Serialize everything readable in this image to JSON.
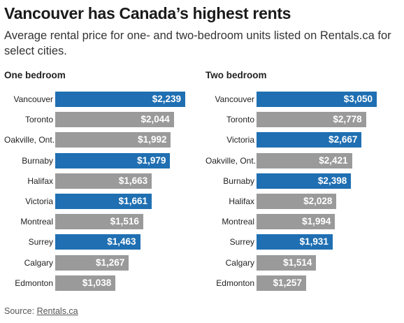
{
  "title": "Vancouver has Canada’s highest rents",
  "subtitle": "Average rental price for one- and two-bedroom units listed on Rentals.ca for select cities.",
  "source": {
    "label": "Source: ",
    "link_text": "Rentals.ca"
  },
  "colors": {
    "highlight": "#1f6fb2",
    "default": "#9a9a9a"
  },
  "chart_data": [
    {
      "type": "bar",
      "orientation": "horizontal",
      "title": "One bedroom",
      "categories": [
        "Vancouver",
        "Toronto",
        "Oakville, Ont.",
        "Burnaby",
        "Halifax",
        "Victoria",
        "Montreal",
        "Surrey",
        "Calgary",
        "Edmonton"
      ],
      "values": [
        2239,
        2044,
        1992,
        1979,
        1663,
        1661,
        1516,
        1463,
        1267,
        1038
      ],
      "labels": [
        "$2,239",
        "$2,044",
        "$1,992",
        "$1,979",
        "$1,663",
        "$1,661",
        "$1,516",
        "$1,463",
        "$1,267",
        "$1,038"
      ],
      "highlighted": [
        true,
        false,
        false,
        true,
        false,
        true,
        false,
        true,
        false,
        false
      ]
    },
    {
      "type": "bar",
      "orientation": "horizontal",
      "title": "Two bedroom",
      "categories": [
        "Vancouver",
        "Toronto",
        "Victoria",
        "Oakville, Ont.",
        "Burnaby",
        "Halifax",
        "Montreal",
        "Surrey",
        "Calgary",
        "Edmonton"
      ],
      "values": [
        3050,
        2778,
        2667,
        2421,
        2398,
        2028,
        1994,
        1931,
        1514,
        1257
      ],
      "labels": [
        "$3,050",
        "$2,778",
        "$2,667",
        "$2,421",
        "$2,398",
        "$2,028",
        "$1,994",
        "$1,931",
        "$1,514",
        "$1,257"
      ],
      "highlighted": [
        true,
        false,
        true,
        false,
        true,
        false,
        false,
        true,
        false,
        false
      ]
    }
  ]
}
